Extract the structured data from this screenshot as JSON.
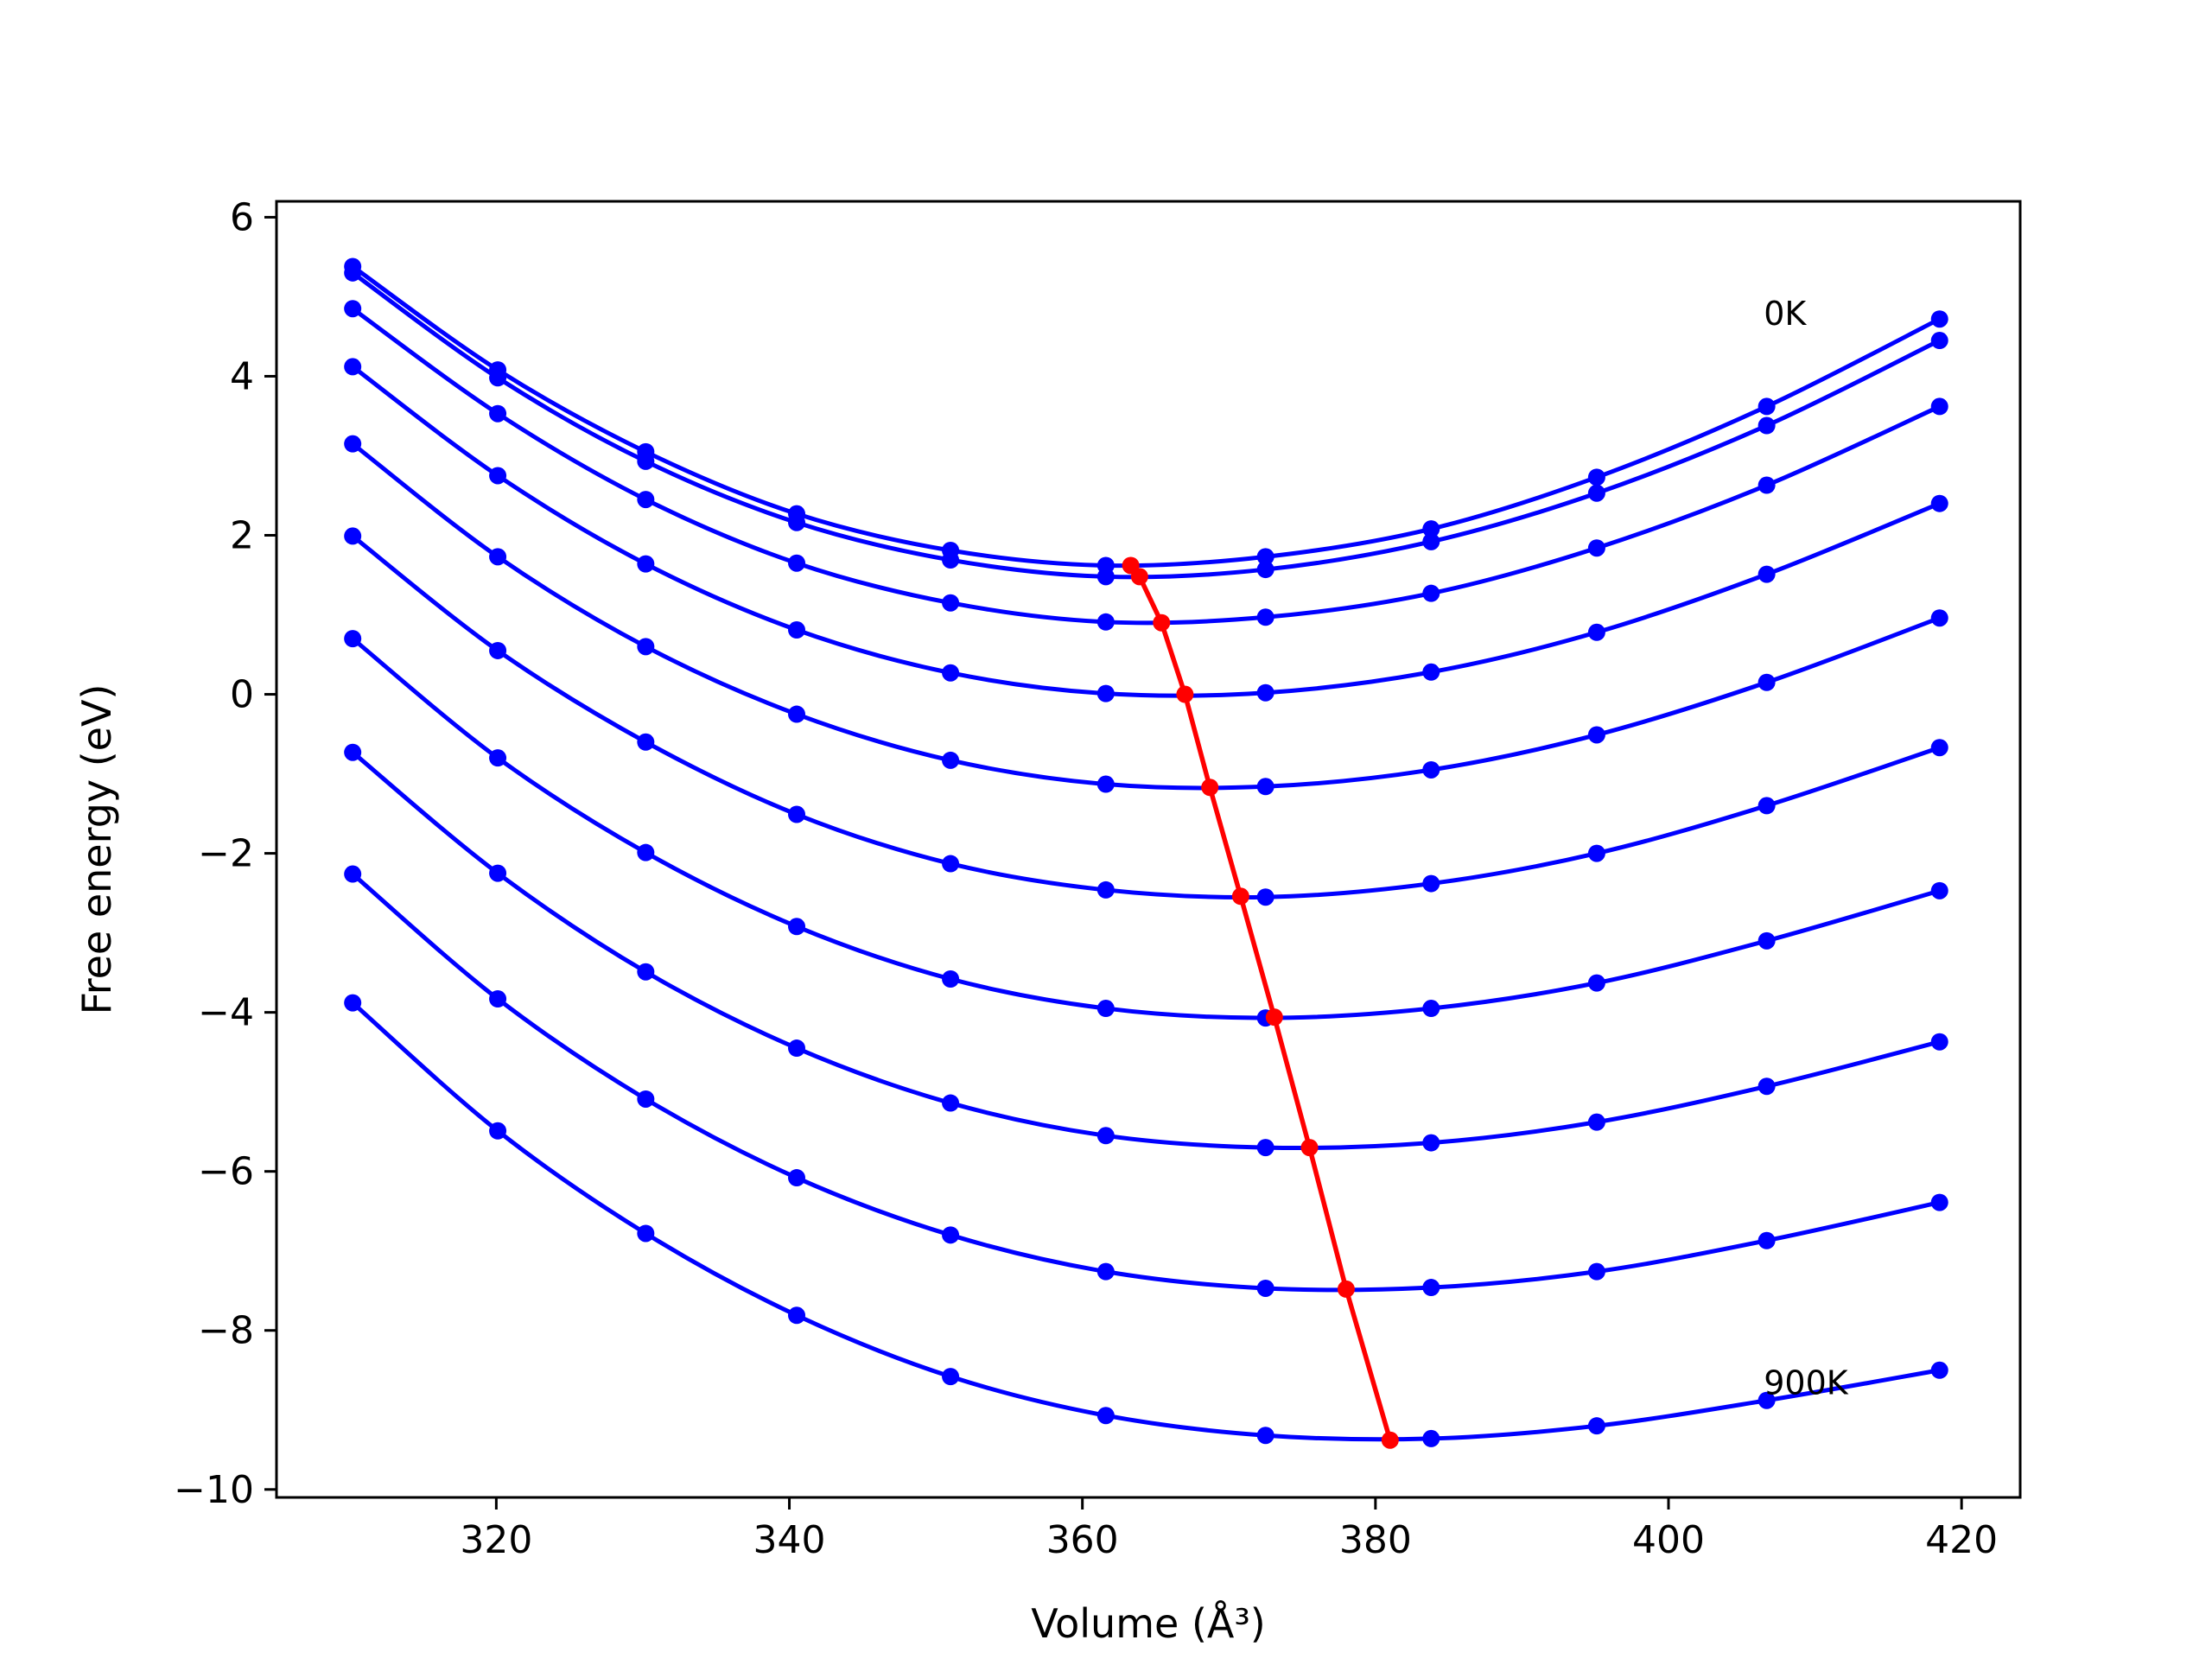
{
  "chart_data": {
    "type": "line",
    "title": "",
    "xlabel": "Volume (Å³)",
    "ylabel": "Free energy (eV)",
    "xlim": [
      305,
      424
    ],
    "ylim": [
      -10.1,
      6.2
    ],
    "xticks": [
      320,
      340,
      360,
      380,
      400,
      420
    ],
    "yticks": [
      6,
      4,
      2,
      0,
      -2,
      -4,
      -6,
      -8,
      -10
    ],
    "x": [
      310.2,
      320.1,
      330.2,
      340.5,
      351.0,
      361.6,
      372.5,
      383.8,
      395.1,
      406.7,
      418.5
    ],
    "series": [
      {
        "values": [
          5.38,
          4.08,
          3.05,
          2.27,
          1.81,
          1.62,
          1.73,
          2.08,
          2.73,
          3.62,
          4.72
        ]
      },
      {
        "values": [
          5.3,
          3.98,
          2.93,
          2.16,
          1.69,
          1.48,
          1.57,
          1.92,
          2.53,
          3.38,
          4.45
        ]
      },
      {
        "values": [
          4.85,
          3.53,
          2.45,
          1.65,
          1.15,
          0.91,
          0.97,
          1.27,
          1.84,
          2.63,
          3.62
        ]
      },
      {
        "values": [
          4.12,
          2.75,
          1.64,
          0.81,
          0.27,
          0.01,
          0.02,
          0.28,
          0.78,
          1.51,
          2.4
        ]
      },
      {
        "values": [
          3.15,
          1.73,
          0.6,
          -0.25,
          -0.83,
          -1.13,
          -1.16,
          -0.95,
          -0.51,
          0.15,
          0.96
        ]
      },
      {
        "values": [
          1.99,
          0.55,
          -0.6,
          -1.51,
          -2.13,
          -2.46,
          -2.55,
          -2.38,
          -2.0,
          -1.4,
          -0.67
        ]
      },
      {
        "values": [
          0.7,
          -0.8,
          -1.99,
          -2.92,
          -3.58,
          -3.95,
          -4.07,
          -3.95,
          -3.63,
          -3.1,
          -2.47
        ]
      },
      {
        "values": [
          -0.73,
          -2.25,
          -3.49,
          -4.45,
          -5.14,
          -5.55,
          -5.7,
          -5.64,
          -5.38,
          -4.93,
          -4.37
        ]
      },
      {
        "values": [
          -2.26,
          -3.83,
          -5.09,
          -6.08,
          -6.8,
          -7.26,
          -7.47,
          -7.46,
          -7.26,
          -6.87,
          -6.39
        ]
      },
      {
        "values": [
          -3.88,
          -5.49,
          -6.78,
          -7.81,
          -8.58,
          -9.07,
          -9.32,
          -9.36,
          -9.2,
          -8.88,
          -8.5
        ]
      }
    ],
    "minima": {
      "x": [
        363.3,
        363.9,
        365.4,
        367.0,
        368.7,
        370.8,
        373.1,
        375.5,
        378.0,
        381.0
      ],
      "y": [
        1.62,
        1.48,
        0.9,
        0.0,
        -1.17,
        -2.54,
        -4.06,
        -5.7,
        -7.48,
        -9.38
      ]
    },
    "annotations": [
      {
        "text": "0K",
        "x": 406.5,
        "y": 4.8
      },
      {
        "text": "900K",
        "x": 406.5,
        "y": -8.65
      }
    ],
    "colors": {
      "curve": "#0000ff",
      "minima": "#ff0000",
      "axes": "#000000"
    },
    "grid": false,
    "legend": "none"
  }
}
